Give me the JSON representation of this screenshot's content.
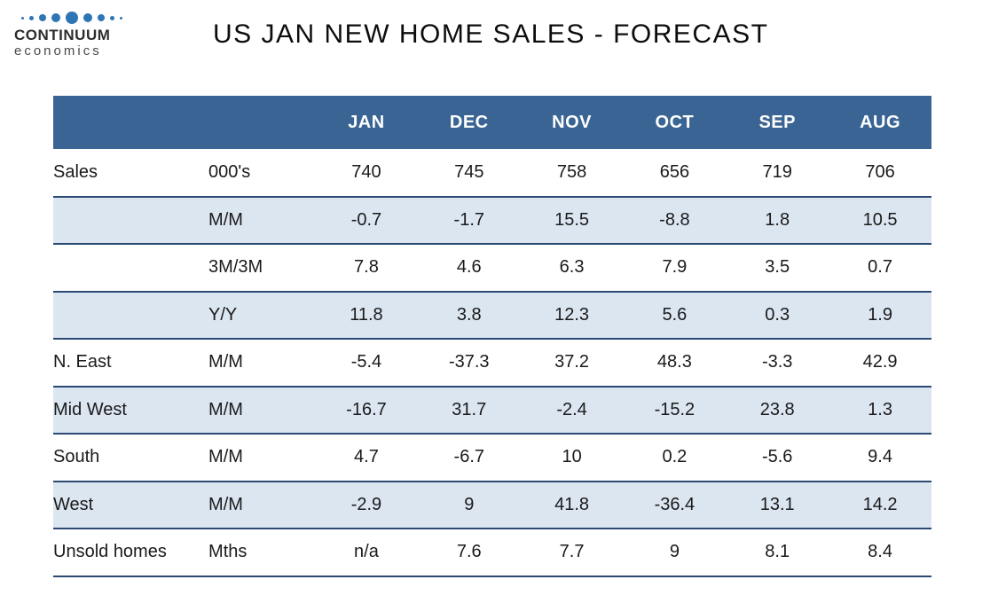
{
  "logo": {
    "name": "CONTINUUM",
    "subtitle": "economics"
  },
  "title": "US JAN NEW HOME SALES - FORECAST",
  "chart_data": {
    "type": "table",
    "title": "US JAN NEW HOME SALES - FORECAST",
    "columns": [
      "",
      "",
      "JAN",
      "DEC",
      "NOV",
      "OCT",
      "SEP",
      "AUG"
    ],
    "rows": [
      {
        "label": "Sales",
        "unit": "000's",
        "values": [
          "740",
          "745",
          "758",
          "656",
          "719",
          "706"
        ],
        "striped": false
      },
      {
        "label": "",
        "unit": "M/M",
        "values": [
          "-0.7",
          "-1.7",
          "15.5",
          "-8.8",
          "1.8",
          "10.5"
        ],
        "striped": true
      },
      {
        "label": "",
        "unit": "3M/3M",
        "values": [
          "7.8",
          "4.6",
          "6.3",
          "7.9",
          "3.5",
          "0.7"
        ],
        "striped": false
      },
      {
        "label": "",
        "unit": "Y/Y",
        "values": [
          "11.8",
          "3.8",
          "12.3",
          "5.6",
          "0.3",
          "1.9"
        ],
        "striped": true
      },
      {
        "label": "N. East",
        "unit": "M/M",
        "values": [
          "-5.4",
          "-37.3",
          "37.2",
          "48.3",
          "-3.3",
          "42.9"
        ],
        "striped": false
      },
      {
        "label": "Mid West",
        "unit": "M/M",
        "values": [
          "-16.7",
          "31.7",
          "-2.4",
          "-15.2",
          "23.8",
          "1.3"
        ],
        "striped": true
      },
      {
        "label": "South",
        "unit": "M/M",
        "values": [
          "4.7",
          "-6.7",
          "10",
          "0.2",
          "-5.6",
          "9.4"
        ],
        "striped": false
      },
      {
        "label": "West",
        "unit": "M/M",
        "values": [
          "-2.9",
          "9",
          "41.8",
          "-36.4",
          "13.1",
          "14.2"
        ],
        "striped": true
      },
      {
        "label": "Unsold homes",
        "unit": "Mths",
        "values": [
          "n/a",
          "7.6",
          "7.7",
          "9",
          "8.1",
          "8.4"
        ],
        "striped": false
      }
    ]
  },
  "colors": {
    "header_bg": "#3a6494",
    "stripe_bg": "#dce6f1",
    "row_border": "#2a4a73",
    "logo_dot_blue": "#2e75b6"
  }
}
